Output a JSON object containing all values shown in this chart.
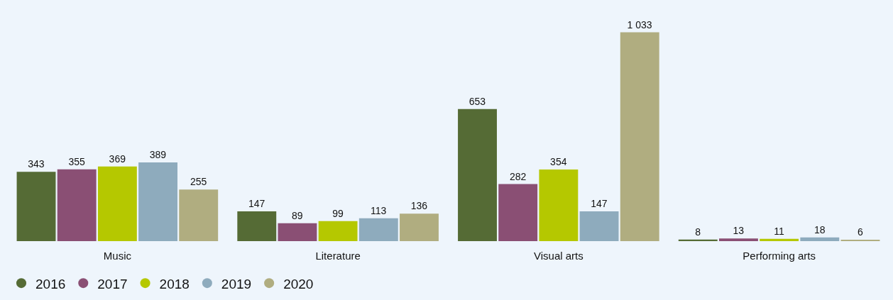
{
  "chart_data": {
    "type": "bar",
    "categories": [
      "Music",
      "Literature",
      "Visual arts",
      "Performing arts"
    ],
    "series": [
      {
        "name": "2016",
        "color": "#556b35",
        "values": [
          343,
          147,
          653,
          8
        ],
        "value_labels": [
          "343",
          "147",
          "653",
          "8"
        ]
      },
      {
        "name": "2017",
        "color": "#8a4f74",
        "values": [
          355,
          89,
          282,
          13
        ],
        "value_labels": [
          "355",
          "89",
          "282",
          "13"
        ]
      },
      {
        "name": "2018",
        "color": "#b5c800",
        "values": [
          369,
          99,
          354,
          11
        ],
        "value_labels": [
          "369",
          "99",
          "354",
          "11"
        ]
      },
      {
        "name": "2019",
        "color": "#8eabbd",
        "values": [
          389,
          113,
          147,
          18
        ],
        "value_labels": [
          "389",
          "113",
          "147",
          "18"
        ]
      },
      {
        "name": "2020",
        "color": "#b0ad80",
        "values": [
          255,
          136,
          1033,
          6
        ],
        "value_labels": [
          "255",
          "136",
          "1 033",
          "6"
        ]
      }
    ],
    "legend": "bottom left",
    "marker": "circle"
  }
}
